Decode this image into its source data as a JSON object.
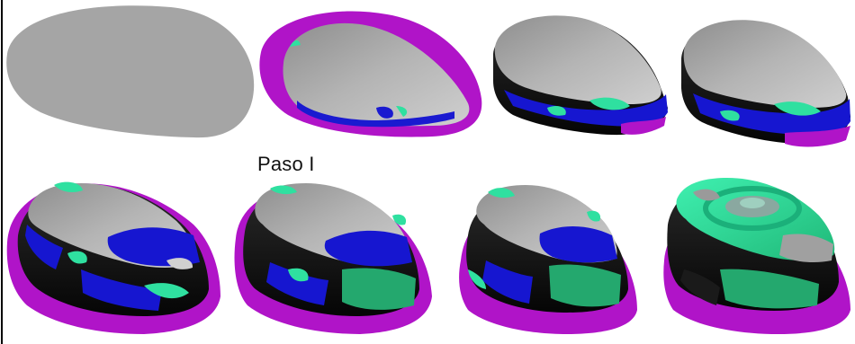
{
  "step_label": "Paso I",
  "colors": {
    "surface_gray": "#a3a3a3",
    "surface_light": "#d2d2d2",
    "wall_dark": "#101010",
    "magenta": "#b010c8",
    "blue": "#1414d8",
    "green": "#2fe0a0",
    "green_dark": "#24a86e"
  },
  "rows": [
    {
      "name": "top-row",
      "stages": 4
    },
    {
      "name": "bottom-row",
      "stages": 4
    }
  ]
}
